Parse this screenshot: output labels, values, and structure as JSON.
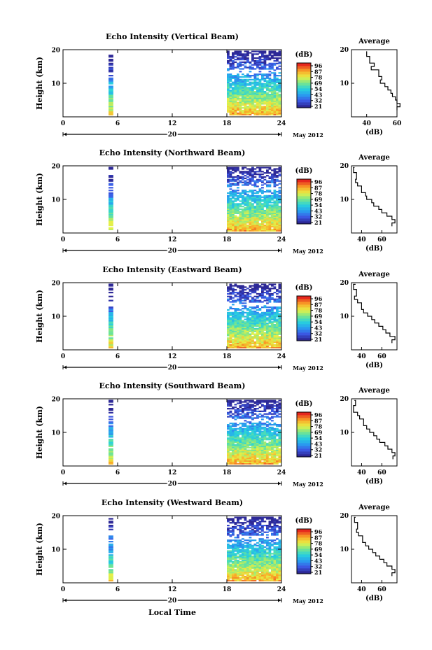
{
  "figure": {
    "xlabel": "Local Time",
    "date_label": "May 2012",
    "day_label": "20",
    "ylabel": "Height (km)",
    "colorbar_unit": "(dB)",
    "colorbar_ticks": [
      "96",
      "87",
      "78",
      "69",
      "54",
      "43",
      "32",
      "21"
    ],
    "avg_title": "Average",
    "avg_xlabel": "(dB)"
  },
  "chart_data": [
    {
      "type": "heatmap",
      "title": "Echo Intensity (Vertical Beam)",
      "xlabel": "Local Time",
      "ylabel": "Height (km)",
      "xlim": [
        0,
        24
      ],
      "ylim": [
        0,
        20
      ],
      "xticks": [
        "0",
        "6",
        "12",
        "18",
        "24"
      ],
      "yticks": [
        "10",
        "20"
      ],
      "colorbar": {
        "label": "(dB)",
        "range": [
          21,
          96
        ],
        "ticks": [
          "96",
          "87",
          "78",
          "69",
          "54",
          "43",
          "32",
          "21"
        ]
      },
      "date": "May 2012",
      "day": "20",
      "data_spans_hours": [
        [
          5.0,
          5.5
        ],
        [
          18.0,
          24.0
        ]
      ],
      "avg_profile": {
        "title": "Average",
        "xlabel": "(dB)",
        "xlim": [
          30,
          60
        ],
        "xticks": [
          "40",
          "60"
        ],
        "yticks": [
          "10",
          "20"
        ],
        "x_db": [
          40,
          40,
          42,
          45,
          43,
          48,
          50,
          49,
          52,
          54,
          56,
          57,
          59,
          60,
          62,
          60
        ],
        "y_km": [
          19.5,
          18,
          16,
          15,
          14,
          12,
          11,
          10,
          9,
          8,
          7,
          6,
          5,
          4,
          3,
          2
        ]
      }
    },
    {
      "type": "heatmap",
      "title": "Echo Intensity (Northward Beam)",
      "xlabel": "Local Time",
      "ylabel": "Height (km)",
      "xlim": [
        0,
        24
      ],
      "ylim": [
        0,
        20
      ],
      "xticks": [
        "0",
        "6",
        "12",
        "18",
        "24"
      ],
      "yticks": [
        "10",
        "20"
      ],
      "colorbar": {
        "label": "(dB)",
        "range": [
          21,
          96
        ],
        "ticks": [
          "96",
          "87",
          "78",
          "69",
          "54",
          "43",
          "32",
          "21"
        ]
      },
      "date": "May 2012",
      "day": "20",
      "data_spans_hours": [
        [
          5.0,
          5.5
        ],
        [
          18.0,
          24.0
        ]
      ],
      "avg_profile": {
        "title": "Average",
        "xlabel": "(dB)",
        "xlim": [
          30,
          75
        ],
        "xticks": [
          "40",
          "60"
        ],
        "yticks": [
          "10",
          "20"
        ],
        "x_db": [
          33,
          32,
          35,
          34,
          36,
          40,
          44,
          45,
          50,
          52,
          57,
          60,
          65,
          70,
          73,
          70
        ],
        "y_km": [
          19.5,
          18,
          16,
          15,
          14,
          12,
          11,
          10,
          9,
          8,
          7,
          6,
          5,
          4,
          3,
          2
        ]
      }
    },
    {
      "type": "heatmap",
      "title": "Echo Intensity (Eastward Beam)",
      "xlabel": "Local Time",
      "ylabel": "Height (km)",
      "xlim": [
        0,
        24
      ],
      "ylim": [
        0,
        20
      ],
      "xticks": [
        "0",
        "6",
        "12",
        "18",
        "24"
      ],
      "yticks": [
        "10",
        "20"
      ],
      "colorbar": {
        "label": "(dB)",
        "range": [
          21,
          96
        ],
        "ticks": [
          "96",
          "87",
          "78",
          "69",
          "54",
          "43",
          "32",
          "21"
        ]
      },
      "date": "May 2012",
      "day": "20",
      "data_spans_hours": [
        [
          5.0,
          5.5
        ],
        [
          18.0,
          24.0
        ]
      ],
      "avg_profile": {
        "title": "Average",
        "xlabel": "(dB)",
        "xlim": [
          30,
          75
        ],
        "xticks": [
          "40",
          "60"
        ],
        "yticks": [
          "10",
          "20"
        ],
        "x_db": [
          34,
          32,
          35,
          33,
          36,
          40,
          42,
          46,
          50,
          53,
          57,
          61,
          64,
          68,
          73,
          70
        ],
        "y_km": [
          19.5,
          18,
          16,
          15,
          14,
          12,
          11,
          10,
          9,
          8,
          7,
          6,
          5,
          4,
          3,
          2
        ]
      }
    },
    {
      "type": "heatmap",
      "title": "Echo Intensity (Southward Beam)",
      "xlabel": "Local Time",
      "ylabel": "Height (km)",
      "xlim": [
        0,
        24
      ],
      "ylim": [
        0,
        20
      ],
      "xticks": [
        "0",
        "6",
        "12",
        "18",
        "24"
      ],
      "yticks": [
        "10",
        "20"
      ],
      "colorbar": {
        "label": "(dB)",
        "range": [
          21,
          96
        ],
        "ticks": [
          "96",
          "87",
          "78",
          "69",
          "54",
          "43",
          "32",
          "21"
        ]
      },
      "date": "May 2012",
      "day": "20",
      "data_spans_hours": [
        [
          5.0,
          5.5
        ],
        [
          18.0,
          24.0
        ]
      ],
      "avg_profile": {
        "title": "Average",
        "xlabel": "(dB)",
        "xlim": [
          30,
          75
        ],
        "xticks": [
          "40",
          "60"
        ],
        "yticks": [
          "10",
          "20"
        ],
        "x_db": [
          33,
          34,
          32,
          36,
          38,
          42,
          45,
          48,
          52,
          55,
          58,
          63,
          66,
          70,
          73,
          71
        ],
        "y_km": [
          19.5,
          18,
          16,
          15,
          14,
          12,
          11,
          10,
          9,
          8,
          7,
          6,
          5,
          4,
          3,
          2
        ]
      }
    },
    {
      "type": "heatmap",
      "title": "Echo Intensity (Westward Beam)",
      "xlabel": "Local Time",
      "ylabel": "Height (km)",
      "xlim": [
        0,
        24
      ],
      "ylim": [
        0,
        20
      ],
      "xticks": [
        "0",
        "6",
        "12",
        "18",
        "24"
      ],
      "yticks": [
        "10",
        "20"
      ],
      "colorbar": {
        "label": "(dB)",
        "range": [
          21,
          96
        ],
        "ticks": [
          "96",
          "87",
          "78",
          "69",
          "54",
          "43",
          "32",
          "21"
        ]
      },
      "date": "May 2012",
      "day": "20",
      "data_spans_hours": [
        [
          5.0,
          5.5
        ],
        [
          18.0,
          24.0
        ]
      ],
      "avg_profile": {
        "title": "Average",
        "xlabel": "(dB)",
        "xlim": [
          30,
          75
        ],
        "xticks": [
          "40",
          "60"
        ],
        "yticks": [
          "10",
          "20"
        ],
        "x_db": [
          34,
          33,
          36,
          35,
          37,
          41,
          44,
          47,
          51,
          54,
          58,
          62,
          65,
          70,
          73,
          70
        ],
        "y_km": [
          19.5,
          18,
          16,
          15,
          14,
          12,
          11,
          10,
          9,
          8,
          7,
          6,
          5,
          4,
          3,
          2
        ]
      }
    }
  ]
}
